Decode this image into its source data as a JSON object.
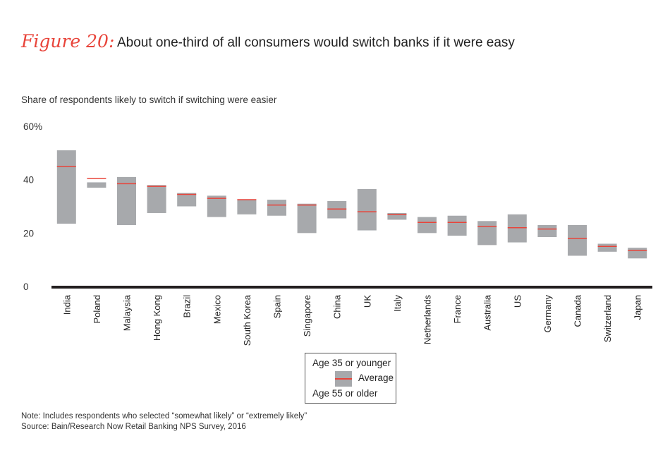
{
  "header": {
    "figure_label": "Figure 20:",
    "title": "About one-third of all consumers would switch banks if it were easy"
  },
  "colors": {
    "accent": "#e8443a",
    "bar": "#a7a9ac",
    "axis": "#231f20"
  },
  "chart_data": {
    "type": "bar",
    "subtype": "floating-range-with-average",
    "title": "",
    "ylabel": "Share of respondents likely to switch if switching were easier",
    "xlabel": "",
    "ylim": [
      0,
      60
    ],
    "yticks": [
      "60%",
      "40",
      "20",
      "0"
    ],
    "ytick_values": [
      60,
      40,
      20,
      0
    ],
    "grid": false,
    "legend_position": "bottom-center",
    "categories": [
      "India",
      "Poland",
      "Malaysia",
      "Hong Kong",
      "Brazil",
      "Mexico",
      "South Korea",
      "Spain",
      "Singapore",
      "China",
      "UK",
      "Italy",
      "Netherlands",
      "France",
      "Australia",
      "US",
      "Germany",
      "Canada",
      "Switzerland",
      "Japan"
    ],
    "series": [
      {
        "name": "Age 35 or younger",
        "values": [
          51,
          39,
          41,
          38,
          35,
          34,
          32.5,
          32.5,
          31,
          32,
          36.5,
          27.5,
          26,
          26.5,
          24.5,
          27,
          23,
          23,
          16,
          14.5
        ]
      },
      {
        "name": "Average",
        "values": [
          45,
          40.5,
          38.5,
          37.5,
          34.5,
          33,
          32.5,
          30.5,
          30.5,
          29,
          28,
          27,
          24,
          24,
          22.5,
          22,
          21.5,
          18,
          15,
          13.5
        ]
      },
      {
        "name": "Age 55 or older",
        "values": [
          23.5,
          37,
          23,
          27.5,
          30,
          26,
          27,
          26.5,
          20,
          25.5,
          21,
          25,
          20,
          19,
          15.5,
          16.5,
          18.5,
          11.5,
          13,
          10.5
        ]
      }
    ]
  },
  "legend": {
    "top_label": "Age 35 or younger",
    "avg_label": "Average",
    "bottom_label": "Age 55 or older"
  },
  "footer": {
    "note": "Note: Includes respondents who selected “somewhat likely” or “extremely likely”",
    "source": "Source: Bain/Research Now Retail Banking NPS Survey, 2016"
  }
}
